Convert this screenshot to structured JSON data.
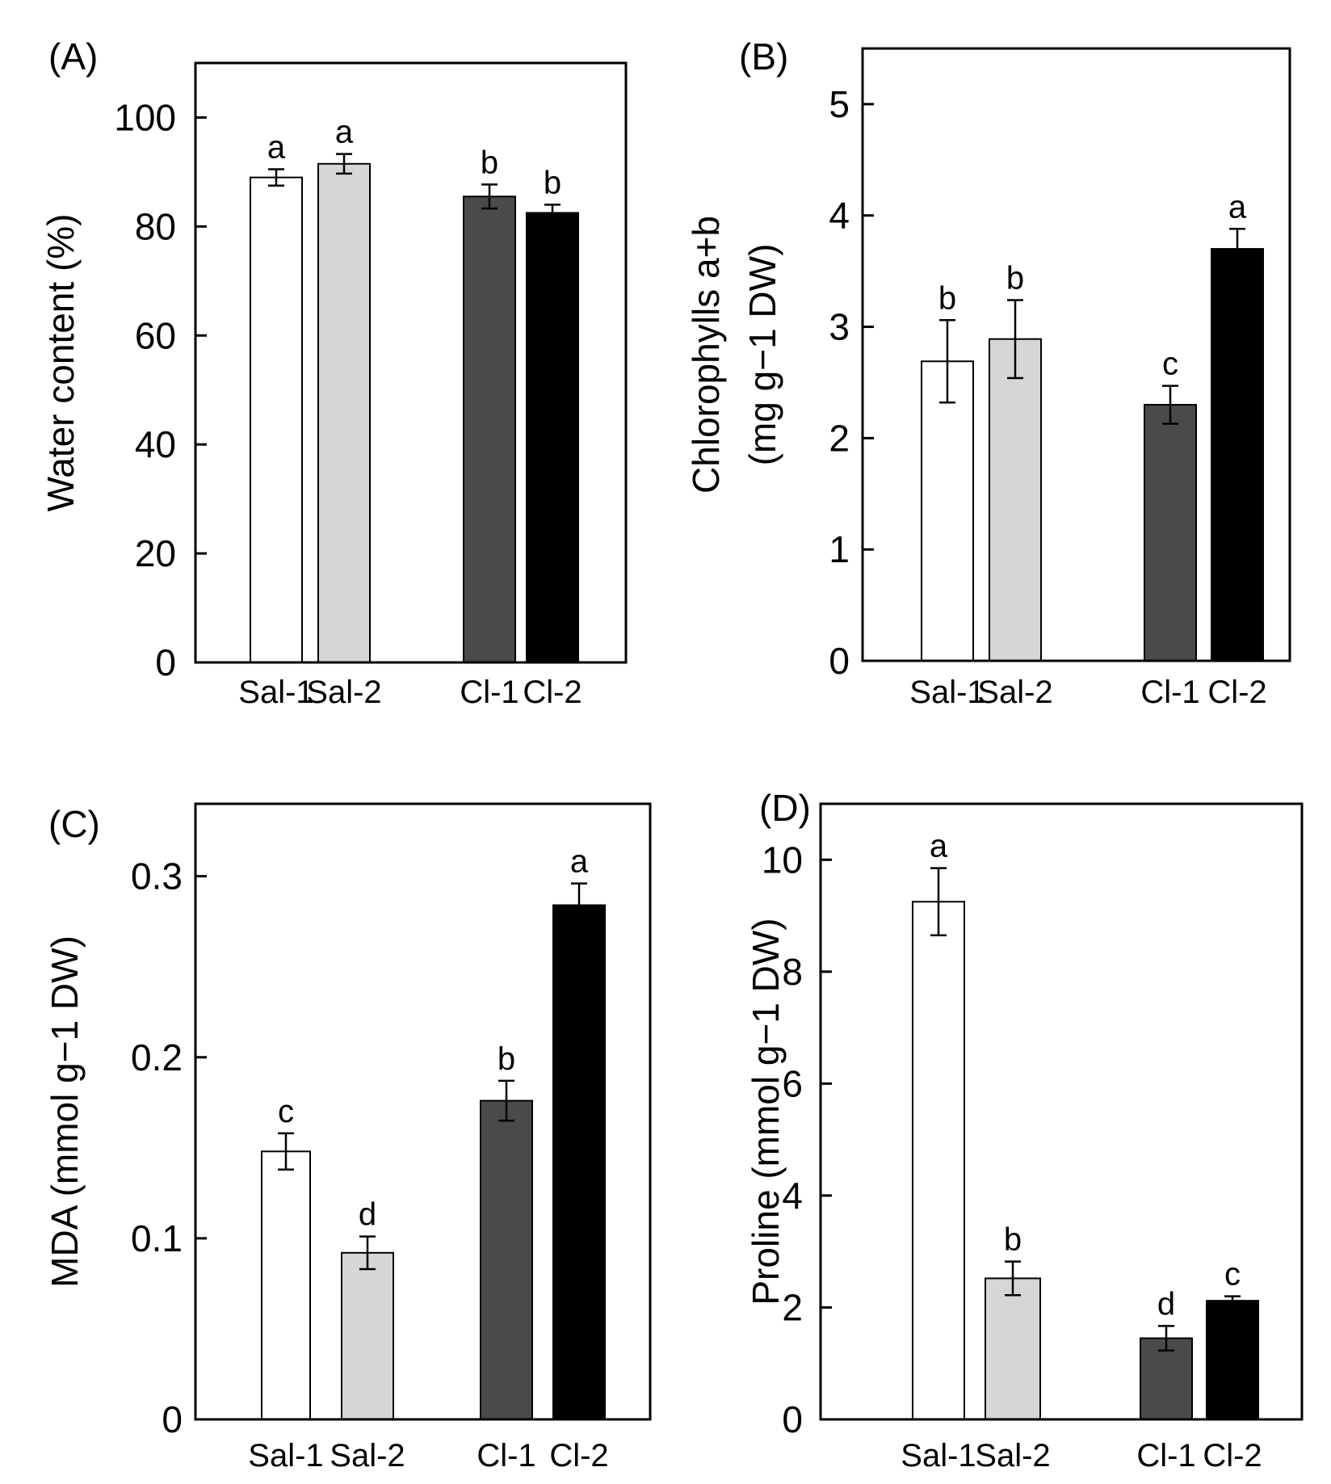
{
  "figure": {
    "fills": [
      "#ffffff",
      "#d6d6d6",
      "#4a4a4a",
      "#000000"
    ]
  },
  "chart_data": [
    {
      "type": "bar",
      "panel_label": "(A)",
      "ylabel": "Water content (%)",
      "categories": [
        "Sal-1",
        "Sal-2",
        "Cl-1",
        "Cl-2"
      ],
      "values": [
        89.0,
        91.5,
        85.5,
        82.5
      ],
      "errors": [
        1.5,
        1.8,
        2.2,
        1.5
      ],
      "letters": [
        "a",
        "a",
        "b",
        "b"
      ],
      "ylim": [
        0,
        110
      ],
      "yticks": [
        0,
        20,
        40,
        60,
        80,
        100
      ],
      "ytick_labels": [
        "0",
        "20",
        "40",
        "60",
        "80",
        "100"
      ]
    },
    {
      "type": "bar",
      "panel_label": "(B)",
      "ylabel_line1": "Chlorophylls a+b",
      "ylabel_line2": "(mg g−1 DW)",
      "categories": [
        "Sal-1",
        "Sal-2",
        "Cl-1",
        "Cl-2"
      ],
      "values": [
        2.69,
        2.89,
        2.3,
        3.7
      ],
      "errors": [
        0.37,
        0.35,
        0.17,
        0.18
      ],
      "letters": [
        "b",
        "b",
        "c",
        "a"
      ],
      "ylim": [
        0,
        5.5
      ],
      "yticks": [
        0,
        1,
        2,
        3,
        4,
        5
      ],
      "ytick_labels": [
        "0",
        "1",
        "2",
        "3",
        "4",
        "5"
      ]
    },
    {
      "type": "bar",
      "panel_label": "(C)",
      "ylabel": "MDA (mmol g−1 DW)",
      "categories": [
        "Sal-1",
        "Sal-2",
        "Cl-1",
        "Cl-2"
      ],
      "values": [
        0.148,
        0.092,
        0.176,
        0.284
      ],
      "errors": [
        0.01,
        0.009,
        0.011,
        0.012
      ],
      "letters": [
        "c",
        "d",
        "b",
        "a"
      ],
      "ylim": [
        0,
        0.34
      ],
      "yticks": [
        0,
        0.1,
        0.2,
        0.3
      ],
      "ytick_labels": [
        "0",
        "0.1",
        "0.2",
        "0.3"
      ]
    },
    {
      "type": "bar",
      "panel_label": "(D)",
      "ylabel": "Proline (mmol g−1 DW)",
      "categories": [
        "Sal-1",
        "Sal-2",
        "Cl-1",
        "Cl-2"
      ],
      "values": [
        9.25,
        2.52,
        1.45,
        2.12
      ],
      "errors": [
        0.6,
        0.3,
        0.22,
        0.08
      ],
      "letters": [
        "a",
        "b",
        "d",
        "c"
      ],
      "ylim": [
        0,
        11
      ],
      "yticks": [
        0,
        2,
        4,
        6,
        8,
        10
      ],
      "ytick_labels": [
        "0",
        "2",
        "4",
        "6",
        "8",
        "10"
      ]
    }
  ]
}
